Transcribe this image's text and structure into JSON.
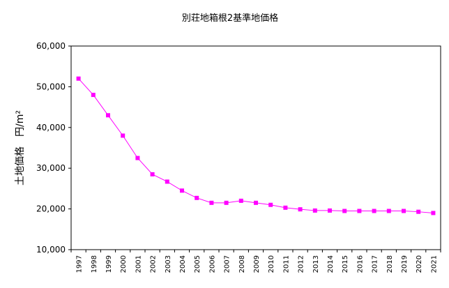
{
  "chart_data": {
    "type": "line",
    "title": "別荘地箱根2基準地価格",
    "ylabel": "土地価格　円/m²",
    "xlabel": "",
    "ylim": [
      10000,
      60000
    ],
    "yticks": [
      10000,
      20000,
      30000,
      40000,
      50000,
      60000
    ],
    "ytick_labels": [
      "10,000",
      "20,000",
      "30,000",
      "40,000",
      "50,000",
      "60,000"
    ],
    "grid": true,
    "categories": [
      "1997",
      "1998",
      "1999",
      "2000",
      "2001",
      "2002",
      "2003",
      "2004",
      "2005",
      "2006",
      "2007",
      "2008",
      "2009",
      "2010",
      "2011",
      "2012",
      "2013",
      "2014",
      "2015",
      "2016",
      "2017",
      "2018",
      "2019",
      "2020",
      "2021"
    ],
    "series": [
      {
        "values": [
          52000,
          48000,
          43000,
          38000,
          32500,
          28500,
          26700,
          24500,
          22700,
          21500,
          21500,
          22000,
          21500,
          21000,
          20300,
          19900,
          19600,
          19600,
          19500,
          19500,
          19500,
          19500,
          19500,
          19300,
          19000
        ],
        "color": "#ff00ff",
        "marker": "square"
      }
    ],
    "plot_bg": "#ffffff",
    "grid_color": "#000000"
  }
}
